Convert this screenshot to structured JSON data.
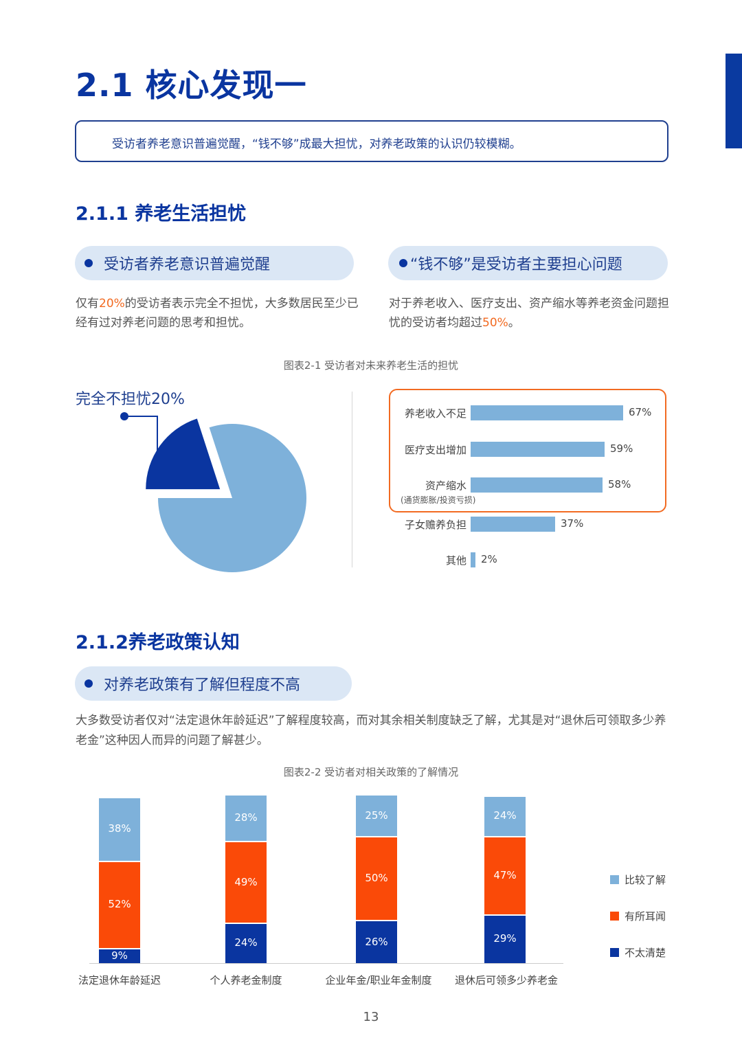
{
  "heading": "2.1 核心发现一",
  "summary": "受访者养老意识普遍觉醒，“钱不够”成最大担忧，对养老政策的认识仍较模糊。",
  "section1": {
    "title": "2.1.1 养老生活担忧",
    "pill_left": "受访者养老意识普遍觉醒",
    "pill_right": "“钱不够”是受访者主要担心问题",
    "para_left": {
      "pre": "仅有",
      "hl": "20%",
      "post": "的受访者表示完全不担忧，大多数居民至少已经有过对养老问题的思考和担忧。"
    },
    "para_right": {
      "pre": "对于养老收入、医疗支出、资产缩水等养老资金问题担忧的受访者均超过",
      "hl": "50%",
      "post": "。"
    },
    "figure_caption": "图表2-1 受访者对未来养老生活的担忧"
  },
  "section2": {
    "title": "2.1.2养老政策认知",
    "pill": "对养老政策有了解但程度不高",
    "para": "大多数受访者仅对“法定退休年龄延迟”了解程度较高，而对其余相关制度缺乏了解，尤其是对“退休后可领取多少养老金”这种因人而异的问题了解甚少。",
    "figure_caption": "图表2-2 受访者对相关政策的了解情况"
  },
  "page_number": "13",
  "colors": {
    "dark_blue": "#0a35a0",
    "light_blue": "#7eb1da",
    "orange": "#f26a21",
    "pill_bg": "#dbe7f5"
  },
  "chart_data": [
    {
      "type": "pie",
      "slices": [
        {
          "label": "完全不担忧20%",
          "value": 20,
          "color": "#0a35a0",
          "exploded": true
        },
        {
          "label": "",
          "value": 80,
          "color": "#7eb1da"
        }
      ]
    },
    {
      "type": "bar",
      "orientation": "horizontal",
      "categories": [
        "养老收入不足",
        "医疗支出增加",
        "资产缩水",
        "子女赡养负担",
        "其他"
      ],
      "category_notes": [
        "",
        "",
        "(通货膨胀/投资亏损)",
        "",
        ""
      ],
      "values": [
        67,
        59,
        58,
        37,
        2
      ],
      "value_labels": [
        "67%",
        "59%",
        "58%",
        "37%",
        "2%"
      ],
      "highlighted": [
        "养老收入不足",
        "医疗支出增加",
        "资产缩水"
      ]
    },
    {
      "type": "bar",
      "stacked": true,
      "categories": [
        "法定退休年龄延迟",
        "个人养老金制度",
        "企业年金/职业年金制度",
        "退休后可领多少养老金"
      ],
      "series": [
        {
          "name": "比较了解",
          "color": "#7eb1da",
          "values": [
            38,
            28,
            25,
            24
          ]
        },
        {
          "name": "有所耳闻",
          "color": "#fa4a08",
          "values": [
            52,
            49,
            50,
            47
          ]
        },
        {
          "name": "不太清楚",
          "color": "#0a35a0",
          "values": [
            9,
            24,
            26,
            29
          ]
        }
      ],
      "legend_position": "right"
    }
  ]
}
